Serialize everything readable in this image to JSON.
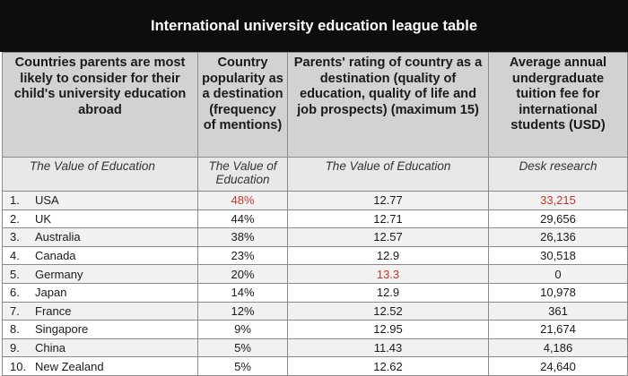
{
  "title": "International university education league table",
  "headers": [
    "Countries parents are most likely to consider for their child's university education abroad",
    "Country popularity as a destination (frequency of mentions)",
    "Parents' rating of country as a destination (quality of education, quality of life and job prospects) (maximum 15)",
    "Average annual undergraduate tuition fee for international students (USD)"
  ],
  "sources": [
    "The Value of Education",
    "The Value of Education",
    "The Value of Education",
    "Desk research"
  ],
  "highlight_color": "#c0392b",
  "rows": [
    {
      "rank": "1.",
      "country": "USA",
      "popularity": "48%",
      "rating": "12.77",
      "fee": "33,215"
    },
    {
      "rank": "2.",
      "country": "UK",
      "popularity": "44%",
      "rating": "12.71",
      "fee": "29,656"
    },
    {
      "rank": "3.",
      "country": "Australia",
      "popularity": "38%",
      "rating": "12.57",
      "fee": "26,136"
    },
    {
      "rank": "4.",
      "country": "Canada",
      "popularity": "23%",
      "rating": "12.9",
      "fee": "30,518"
    },
    {
      "rank": "5.",
      "country": "Germany",
      "popularity": "20%",
      "rating": "13.3",
      "fee": "0"
    },
    {
      "rank": "6.",
      "country": "Japan",
      "popularity": "14%",
      "rating": "12.9",
      "fee": "10,978"
    },
    {
      "rank": "7.",
      "country": "France",
      "popularity": "12%",
      "rating": "12.52",
      "fee": "361"
    },
    {
      "rank": "8.",
      "country": "Singapore",
      "popularity": "9%",
      "rating": "12.95",
      "fee": "21,674"
    },
    {
      "rank": "9.",
      "country": "China",
      "popularity": "5%",
      "rating": "11.43",
      "fee": "4,186"
    },
    {
      "rank": "10.",
      "country": "New Zealand",
      "popularity": "5%",
      "rating": "12.62",
      "fee": "24,640"
    }
  ]
}
